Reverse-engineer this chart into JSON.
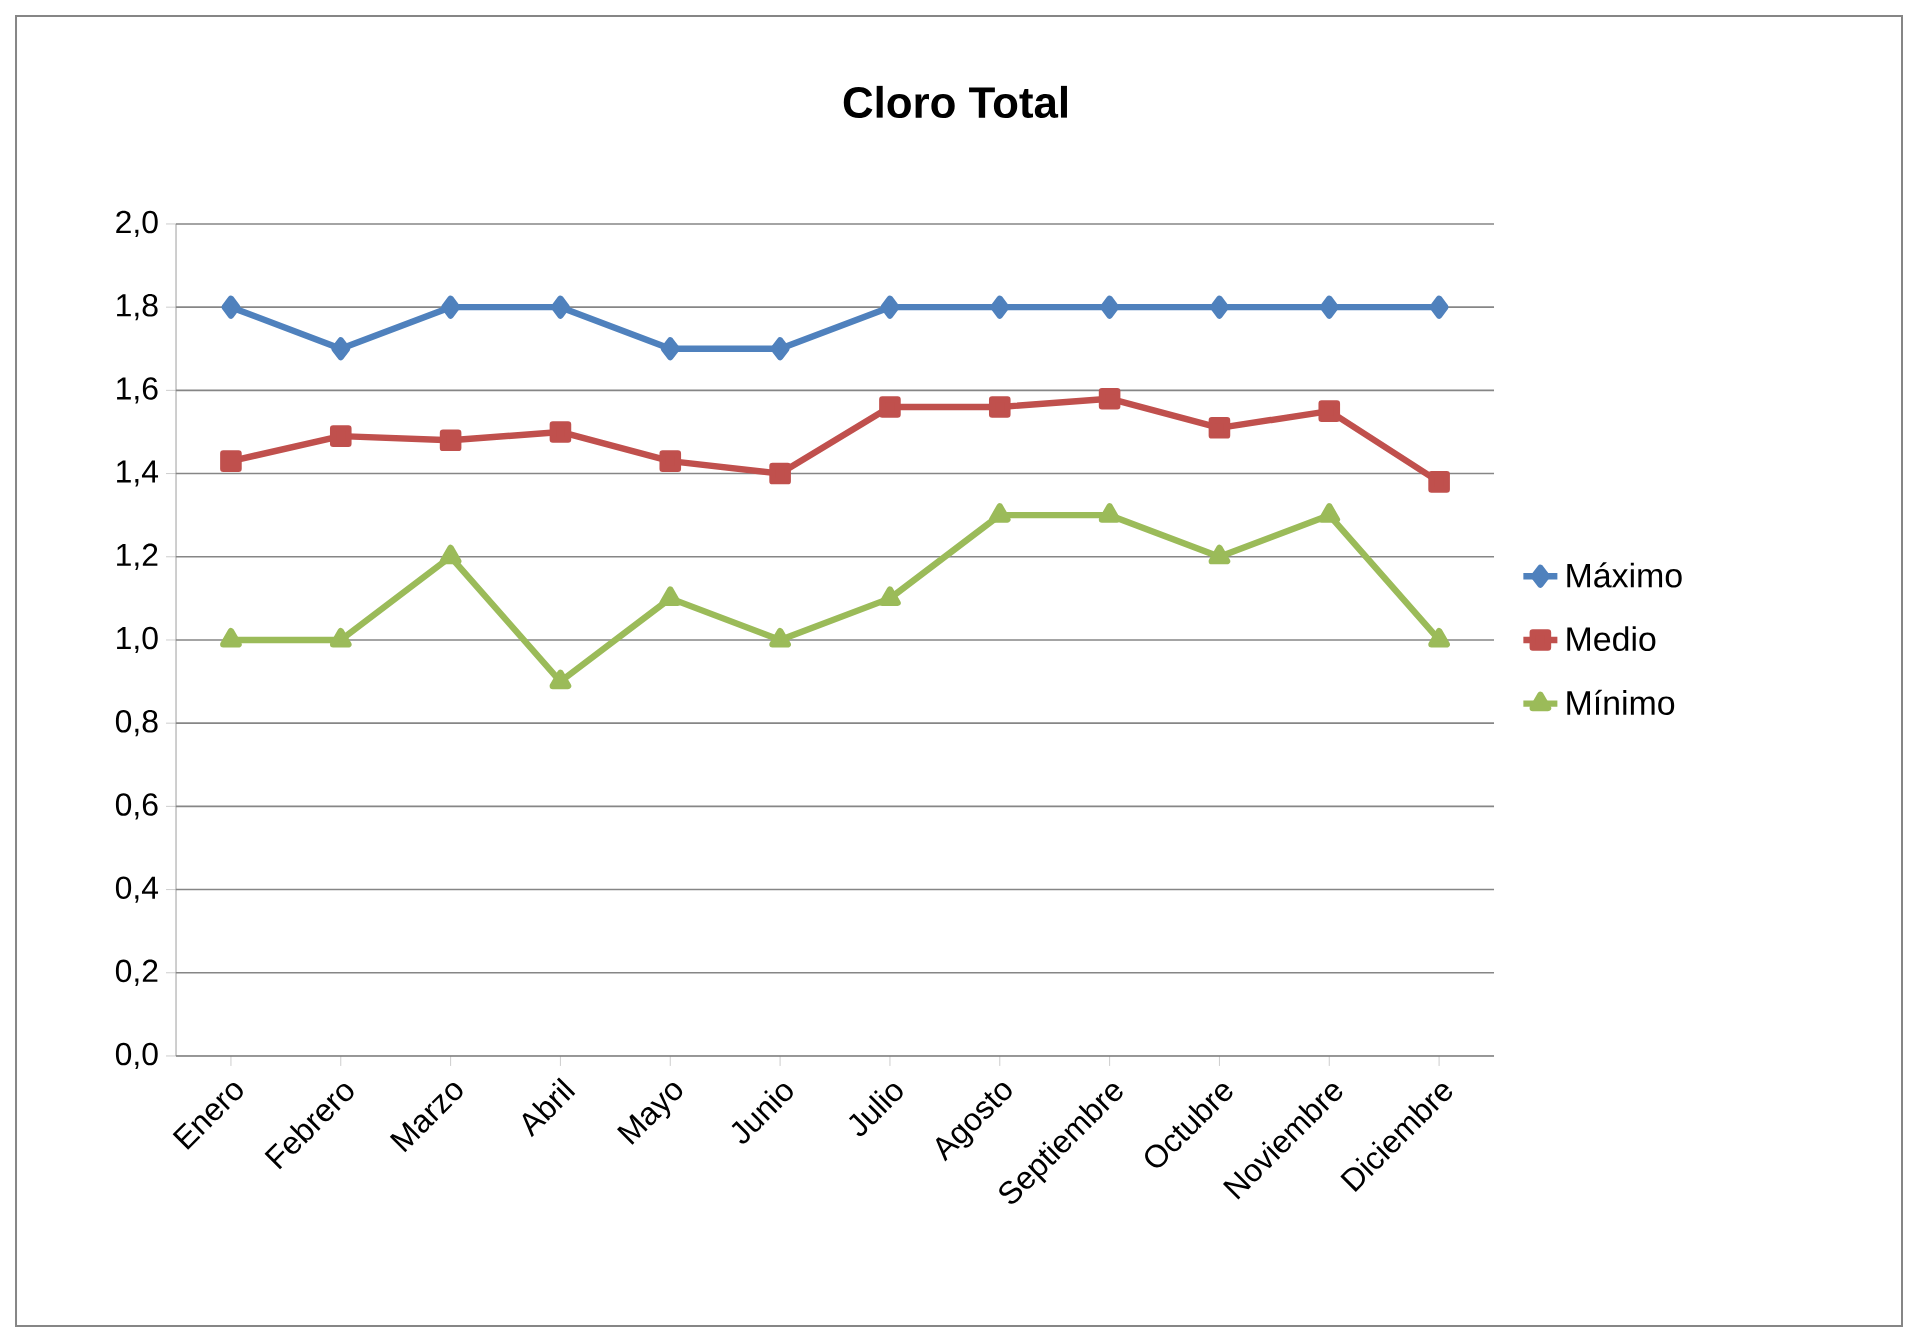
{
  "chart_data": {
    "type": "line",
    "title": "Cloro Total",
    "categories": [
      "Enero",
      "Febrero",
      "Marzo",
      "Abril",
      "Mayo",
      "Junio",
      "Julio",
      "Agosto",
      "Septiembre",
      "Octubre",
      "Noviembre",
      "Diciembre"
    ],
    "series": [
      {
        "name": "Máximo",
        "color": "#4f81bd",
        "marker": "diamond",
        "values": [
          1.8,
          1.7,
          1.8,
          1.8,
          1.7,
          1.7,
          1.8,
          1.8,
          1.8,
          1.8,
          1.8,
          1.8
        ]
      },
      {
        "name": "Medio",
        "color": "#c0504d",
        "marker": "square",
        "values": [
          1.43,
          1.49,
          1.48,
          1.5,
          1.43,
          1.4,
          1.56,
          1.56,
          1.58,
          1.51,
          1.55,
          1.38
        ]
      },
      {
        "name": "Mínimo",
        "color": "#9bbb59",
        "marker": "triangle",
        "values": [
          1.0,
          1.0,
          1.2,
          0.9,
          1.1,
          1.0,
          1.1,
          1.3,
          1.3,
          1.2,
          1.3,
          1.0
        ]
      }
    ],
    "ylim": [
      0,
      2
    ],
    "yticks": [
      {
        "value": 0,
        "label": "0,0"
      },
      {
        "value": 0.2,
        "label": "0,2"
      },
      {
        "value": 0.4,
        "label": "0,4"
      },
      {
        "value": 0.6,
        "label": "0,6"
      },
      {
        "value": 0.8,
        "label": "0,8"
      },
      {
        "value": 1.0,
        "label": "1,0"
      },
      {
        "value": 1.2,
        "label": "1,2"
      },
      {
        "value": 1.4,
        "label": "1,4"
      },
      {
        "value": 1.6,
        "label": "1,6"
      },
      {
        "value": 1.8,
        "label": "1,8"
      },
      {
        "value": 2.0,
        "label": "2,0"
      }
    ],
    "grid": "y",
    "legend": "right",
    "line_style": "solid"
  }
}
